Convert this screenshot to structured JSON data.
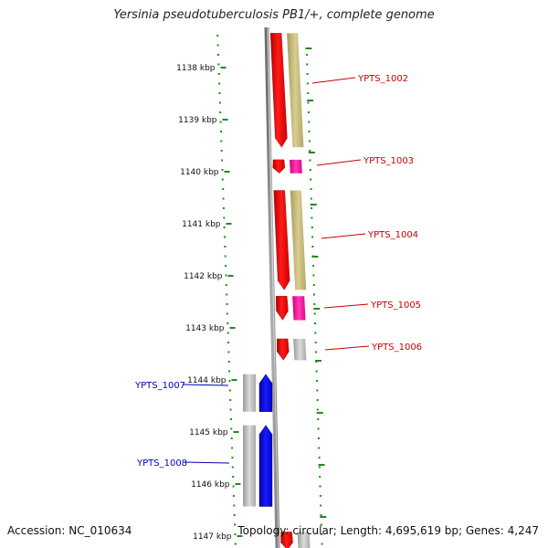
{
  "title": "Yersinia pseudotuberculosis PB1/+, complete genome",
  "accession": "Accession: NC_010634",
  "summary": "Topology: circular; Length: 4,695,619 bp; Genes: 4,247",
  "colors": {
    "forward": "#ff0000",
    "forward_dark": "#c40000",
    "reverse": "#0000ff",
    "backbone": "#8a8a8a",
    "khaki": "#c8bd7d",
    "magenta": "#ff1ca4",
    "grey": "#b5b5b5",
    "tick": "#1f8a1f",
    "label_red": "#cc0000",
    "label_blue": "#0000bb"
  },
  "scale": [
    {
      "label": "1138 kbp",
      "kbp": 1138
    },
    {
      "label": "1139 kbp",
      "kbp": 1139
    },
    {
      "label": "1140 kbp",
      "kbp": 1140
    },
    {
      "label": "1141 kbp",
      "kbp": 1141
    },
    {
      "label": "1142 kbp",
      "kbp": 1142
    },
    {
      "label": "1143 kbp",
      "kbp": 1143
    },
    {
      "label": "1144 kbp",
      "kbp": 1144
    },
    {
      "label": "1145 kbp",
      "kbp": 1145
    },
    {
      "label": "1146 kbp",
      "kbp": 1146
    },
    {
      "label": "1147 kbp",
      "kbp": 1147
    }
  ],
  "genes": [
    {
      "name": "YPTS_1002",
      "strand": "+",
      "start_kbp": 1137.34,
      "end_kbp": 1139.53,
      "cog": "khaki"
    },
    {
      "name": "YPTS_1003",
      "strand": "+",
      "start_kbp": 1139.77,
      "end_kbp": 1140.03,
      "cog": "magenta"
    },
    {
      "name": "YPTS_1004",
      "strand": "+",
      "start_kbp": 1140.36,
      "end_kbp": 1142.27,
      "cog": "khaki"
    },
    {
      "name": "YPTS_1005",
      "strand": "+",
      "start_kbp": 1142.39,
      "end_kbp": 1142.85,
      "cog": "magenta"
    },
    {
      "name": "YPTS_1006",
      "strand": "+",
      "start_kbp": 1143.21,
      "end_kbp": 1143.62,
      "cog": "grey"
    },
    {
      "name": "YPTS_1007",
      "strand": "-",
      "start_kbp": 1143.89,
      "end_kbp": 1144.61,
      "cog": "grey"
    },
    {
      "name": "YPTS_1008",
      "strand": "-",
      "start_kbp": 1144.87,
      "end_kbp": 1146.43,
      "cog": "grey"
    },
    {
      "name": "",
      "strand": "+",
      "start_kbp": 1146.92,
      "end_kbp": 1147.3,
      "cog": "grey"
    }
  ]
}
